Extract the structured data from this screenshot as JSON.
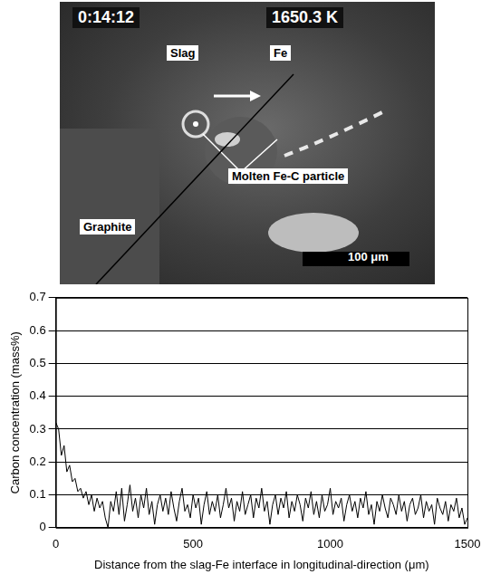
{
  "image": {
    "timestamp": "0:14:12",
    "temperature": "1650.3 K",
    "labels": [
      "Slag",
      "Fe",
      "Molten Fe-C particle",
      "Graphite"
    ],
    "scale_bar": "100 μm"
  },
  "chart_data": {
    "type": "line",
    "x_label": "Distance from the slag-Fe interface in longitudinal-direction (μm)",
    "y_label": "Carbon concentration (mass%)",
    "x": [
      0,
      10,
      20,
      30,
      40,
      50,
      60,
      70,
      80,
      90,
      100,
      110,
      120,
      130,
      140,
      150,
      160,
      170,
      180,
      190,
      200,
      210,
      220,
      230,
      240,
      250,
      260,
      270,
      280,
      290,
      300,
      310,
      320,
      330,
      340,
      350,
      360,
      370,
      380,
      390,
      400,
      410,
      420,
      430,
      440,
      450,
      460,
      470,
      480,
      490,
      500,
      510,
      520,
      530,
      540,
      550,
      560,
      570,
      580,
      590,
      600,
      610,
      620,
      630,
      640,
      650,
      660,
      670,
      680,
      690,
      700,
      710,
      720,
      730,
      740,
      750,
      760,
      770,
      780,
      790,
      800,
      810,
      820,
      830,
      840,
      850,
      860,
      870,
      880,
      890,
      900,
      910,
      920,
      930,
      940,
      950,
      960,
      970,
      980,
      990,
      1000,
      1010,
      1020,
      1030,
      1040,
      1050,
      1060,
      1070,
      1080,
      1090,
      1100,
      1110,
      1120,
      1130,
      1140,
      1150,
      1160,
      1170,
      1180,
      1190,
      1200,
      1210,
      1220,
      1230,
      1240,
      1250,
      1260,
      1270,
      1280,
      1290,
      1300,
      1310,
      1320,
      1330,
      1340,
      1350,
      1360,
      1370,
      1380,
      1390,
      1400,
      1410,
      1420,
      1430,
      1440,
      1450,
      1460,
      1470,
      1480,
      1490,
      1500
    ],
    "values": [
      0.32,
      0.3,
      0.22,
      0.25,
      0.17,
      0.19,
      0.14,
      0.15,
      0.11,
      0.12,
      0.09,
      0.11,
      0.07,
      0.1,
      0.05,
      0.09,
      0.06,
      0.08,
      0.03,
      0.0,
      0.08,
      0.05,
      0.11,
      0.04,
      0.12,
      0.02,
      0.07,
      0.13,
      0.05,
      0.09,
      0.03,
      0.1,
      0.06,
      0.12,
      0.04,
      0.08,
      0.01,
      0.07,
      0.1,
      0.05,
      0.09,
      0.04,
      0.11,
      0.06,
      0.02,
      0.08,
      0.12,
      0.05,
      0.07,
      0.03,
      0.1,
      0.06,
      0.09,
      0.01,
      0.07,
      0.11,
      0.04,
      0.08,
      0.05,
      0.1,
      0.03,
      0.07,
      0.12,
      0.06,
      0.09,
      0.02,
      0.08,
      0.05,
      0.11,
      0.04,
      0.07,
      0.1,
      0.03,
      0.09,
      0.06,
      0.12,
      0.05,
      0.08,
      0.01,
      0.07,
      0.1,
      0.04,
      0.09,
      0.06,
      0.11,
      0.03,
      0.08,
      0.05,
      0.1,
      0.07,
      0.02,
      0.09,
      0.06,
      0.11,
      0.04,
      0.08,
      0.03,
      0.1,
      0.05,
      0.07,
      0.12,
      0.04,
      0.08,
      0.06,
      0.09,
      0.02,
      0.07,
      0.1,
      0.05,
      0.08,
      0.03,
      0.09,
      0.06,
      0.11,
      0.04,
      0.07,
      0.01,
      0.08,
      0.05,
      0.1,
      0.06,
      0.03,
      0.09,
      0.07,
      0.04,
      0.1,
      0.05,
      0.08,
      0.02,
      0.07,
      0.09,
      0.04,
      0.06,
      0.1,
      0.03,
      0.08,
      0.05,
      0.07,
      0.01,
      0.09,
      0.06,
      0.04,
      0.08,
      0.02,
      0.07,
      0.05,
      0.09,
      0.03,
      0.06,
      0.01,
      0.03
    ],
    "color": "#000000",
    "xlim": [
      0,
      1500
    ],
    "xticks": [
      0,
      500,
      1000,
      1500
    ],
    "ylim": [
      0,
      0.7
    ],
    "yticks": [
      0,
      0.1,
      0.2,
      0.3,
      0.4,
      0.5,
      0.6,
      0.7
    ],
    "grid": true
  }
}
